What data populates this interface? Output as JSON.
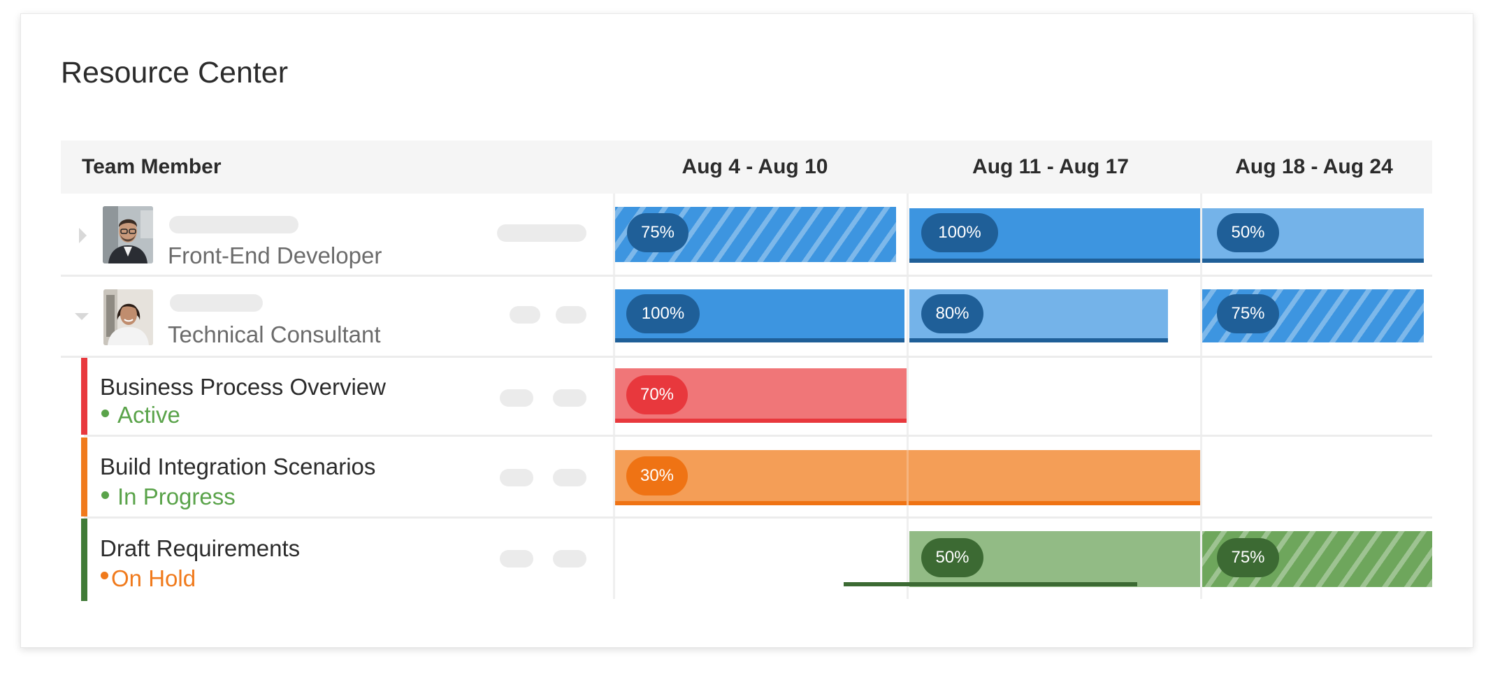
{
  "page": {
    "title": "Resource Center"
  },
  "columns": {
    "member_header": "Team Member",
    "weeks": [
      "Aug 4 - Aug 10",
      "Aug 11 - Aug 17",
      "Aug 18 - Aug 24"
    ]
  },
  "members": [
    {
      "role": "Front-End Developer",
      "expanded": false,
      "allocations": [
        "75%",
        "100%",
        "50%"
      ]
    },
    {
      "role": "Technical Consultant",
      "expanded": true,
      "allocations": [
        "100%",
        "80%",
        "75%"
      ]
    }
  ],
  "tasks": [
    {
      "name": "Business Process Overview",
      "status": "Active",
      "status_color": "#5aa34a",
      "accent_color": "#e8383d",
      "allocations": [
        "70%"
      ]
    },
    {
      "name": "Build Integration Scenarios",
      "status": "In Progress",
      "status_color": "#5aa34a",
      "accent_color": "#f07a1c",
      "allocations": [
        "30%"
      ]
    },
    {
      "name": "Draft Requirements",
      "status": "On Hold",
      "status_color": "#f07a1c",
      "accent_color": "#3f7a36",
      "allocations": [
        "50%",
        "75%"
      ]
    }
  ],
  "colors": {
    "blue": "#3d95e0",
    "light_blue": "#74b3e9",
    "blue_pill": "#1f5f98",
    "blue_underline": "#1f5f98",
    "red_bar": "#f07678",
    "red_pill": "#e8383d",
    "orange_bar": "#f49e57",
    "orange_pill": "#ef7314",
    "green_bar": "#92bb85",
    "green_pill": "#3c6a33"
  },
  "icons": {
    "collapsed": "chevron-right-icon",
    "expanded": "chevron-down-icon"
  }
}
